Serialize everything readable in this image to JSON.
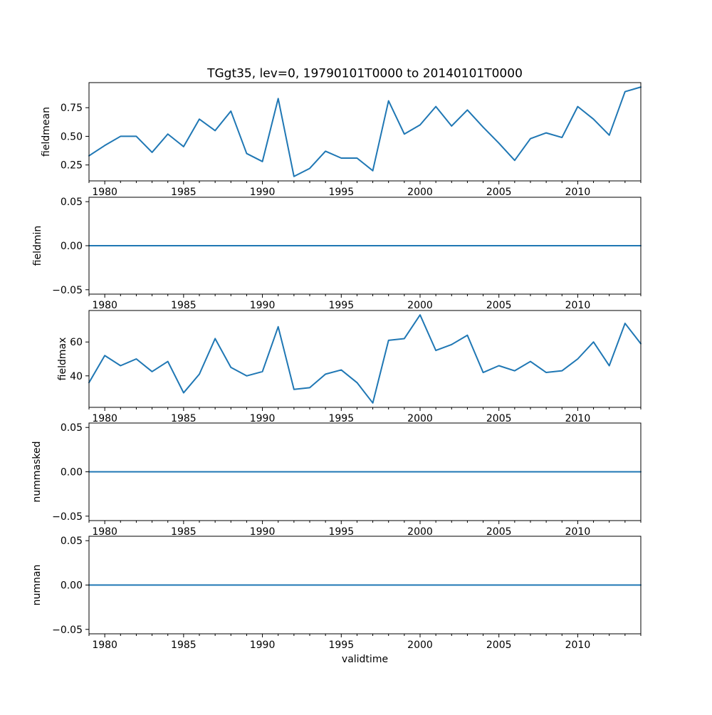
{
  "figure": {
    "title": "TGgt35, lev=0, 19790101T0000 to 20140101T0000",
    "xlabel": "validtime",
    "line_color": "#1f77b4",
    "background_color": "#ffffff",
    "text_color": "#000000"
  },
  "chart_data": {
    "type": "line",
    "title": "TGgt35, lev=0, 19790101T0000 to 20140101T0000",
    "xlabel": "validtime",
    "xlim": [
      1979,
      2014
    ],
    "xticks": [
      {
        "value": 1980,
        "label": "1980"
      },
      {
        "value": 1985,
        "label": "1985"
      },
      {
        "value": 1990,
        "label": "1990"
      },
      {
        "value": 1995,
        "label": "1995"
      },
      {
        "value": 2000,
        "label": "2000"
      },
      {
        "value": 2005,
        "label": "2005"
      },
      {
        "value": 2010,
        "label": "2010"
      }
    ],
    "xticks_minor_interval_years": 1,
    "x": [
      1979,
      1980,
      1981,
      1982,
      1983,
      1984,
      1985,
      1986,
      1987,
      1988,
      1989,
      1990,
      1991,
      1992,
      1993,
      1994,
      1995,
      1996,
      1997,
      1998,
      1999,
      2000,
      2001,
      2002,
      2003,
      2004,
      2005,
      2006,
      2007,
      2008,
      2009,
      2010,
      2011,
      2012,
      2013,
      2014
    ],
    "subplots": [
      {
        "ylabel": "fieldmean",
        "values": [
          0.33,
          0.42,
          0.5,
          0.5,
          0.36,
          0.52,
          0.41,
          0.65,
          0.55,
          0.72,
          0.35,
          0.28,
          0.83,
          0.15,
          0.22,
          0.37,
          0.31,
          0.31,
          0.2,
          0.81,
          0.52,
          0.6,
          0.76,
          0.59,
          0.73,
          0.58,
          0.44,
          0.29,
          0.48,
          0.53,
          0.49,
          0.76,
          0.65,
          0.51,
          0.89,
          0.93
        ],
        "yticks": [
          {
            "value": 0.25,
            "label": "0.25"
          },
          {
            "value": 0.5,
            "label": "0.50"
          },
          {
            "value": 0.75,
            "label": "0.75"
          }
        ]
      },
      {
        "ylabel": "fieldmin",
        "values": [
          0,
          0,
          0,
          0,
          0,
          0,
          0,
          0,
          0,
          0,
          0,
          0,
          0,
          0,
          0,
          0,
          0,
          0,
          0,
          0,
          0,
          0,
          0,
          0,
          0,
          0,
          0,
          0,
          0,
          0,
          0,
          0,
          0,
          0,
          0,
          0
        ],
        "yticks": [
          {
            "value": -0.05,
            "label": "−0.05"
          },
          {
            "value": 0.0,
            "label": "0.00"
          },
          {
            "value": 0.05,
            "label": "0.05"
          }
        ]
      },
      {
        "ylabel": "fieldmax",
        "values": [
          36,
          52,
          46,
          50,
          42.5,
          48.5,
          30,
          41,
          62,
          45,
          40,
          42.5,
          69,
          32,
          33,
          41,
          43.5,
          36,
          24,
          61,
          62,
          76,
          55,
          58.5,
          64,
          42,
          46,
          43,
          48.5,
          42,
          43,
          50,
          60,
          46,
          71,
          59
        ],
        "yticks": [
          {
            "value": 40,
            "label": "40"
          },
          {
            "value": 60,
            "label": "60"
          }
        ]
      },
      {
        "ylabel": "nummasked",
        "values": [
          0,
          0,
          0,
          0,
          0,
          0,
          0,
          0,
          0,
          0,
          0,
          0,
          0,
          0,
          0,
          0,
          0,
          0,
          0,
          0,
          0,
          0,
          0,
          0,
          0,
          0,
          0,
          0,
          0,
          0,
          0,
          0,
          0,
          0,
          0,
          0
        ],
        "yticks": [
          {
            "value": -0.05,
            "label": "−0.05"
          },
          {
            "value": 0.0,
            "label": "0.00"
          },
          {
            "value": 0.05,
            "label": "0.05"
          }
        ]
      },
      {
        "ylabel": "numnan",
        "values": [
          0,
          0,
          0,
          0,
          0,
          0,
          0,
          0,
          0,
          0,
          0,
          0,
          0,
          0,
          0,
          0,
          0,
          0,
          0,
          0,
          0,
          0,
          0,
          0,
          0,
          0,
          0,
          0,
          0,
          0,
          0,
          0,
          0,
          0,
          0,
          0
        ],
        "yticks": [
          {
            "value": -0.05,
            "label": "−0.05"
          },
          {
            "value": 0.0,
            "label": "0.00"
          },
          {
            "value": 0.05,
            "label": "0.05"
          }
        ]
      }
    ],
    "legend": "off",
    "grid": "off"
  }
}
